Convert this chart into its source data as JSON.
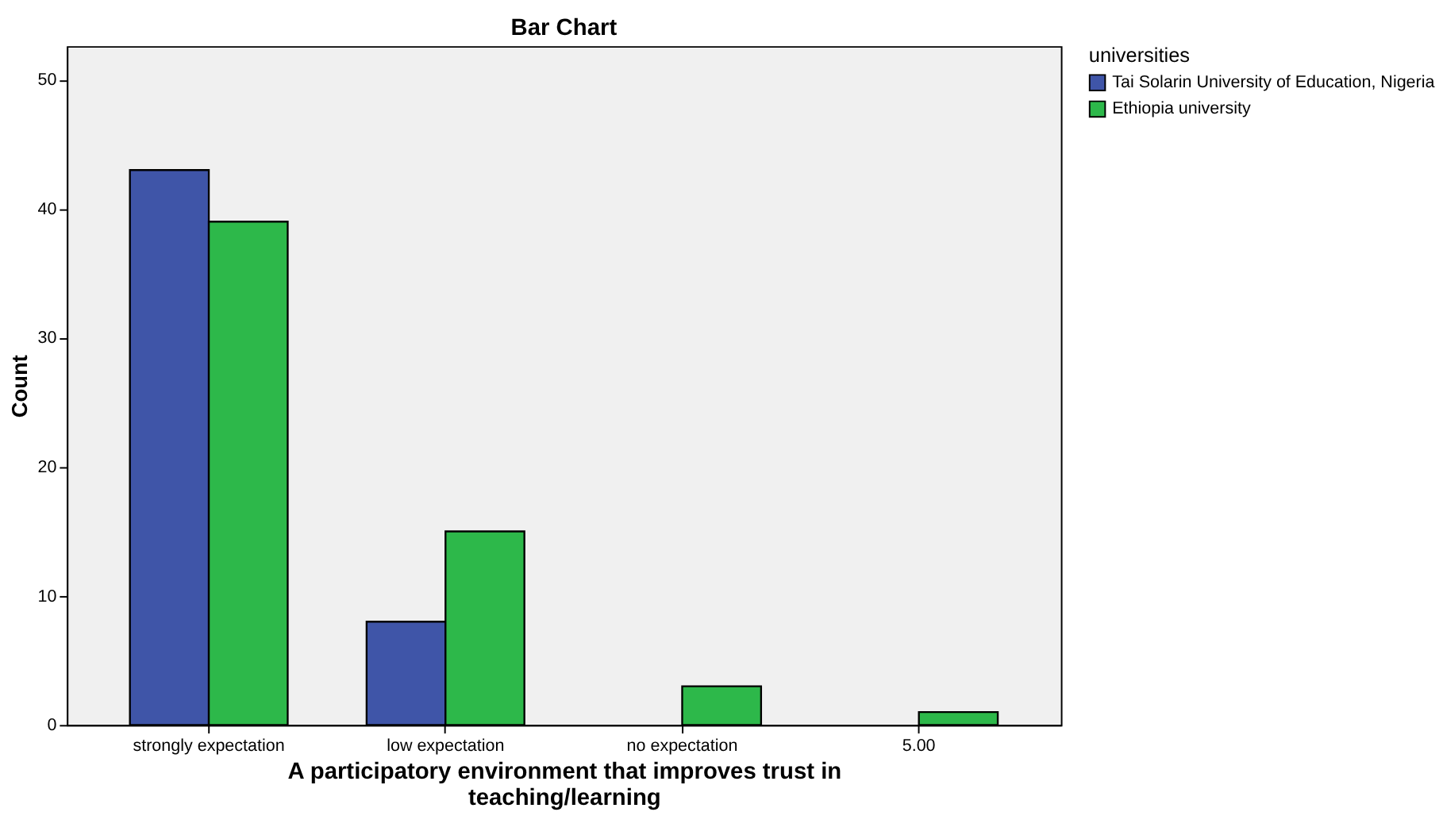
{
  "chart_data": {
    "type": "bar",
    "title": "Bar Chart",
    "xlabel": "A participatory environment that improves trust in teaching/learning",
    "ylabel": "Count",
    "legend_title": "universities",
    "categories": [
      "strongly expectation",
      "low expectation",
      "no expectation",
      "5.00"
    ],
    "series": [
      {
        "name": "Tai Solarin University of Education, Nigeria",
        "color": "#3f55a8",
        "values": [
          43,
          8,
          null,
          null
        ]
      },
      {
        "name": "Ethiopia university",
        "color": "#2db84a",
        "values": [
          39,
          15,
          3,
          1
        ]
      }
    ],
    "ylim": [
      0,
      52.6
    ],
    "yticks": [
      0,
      10,
      20,
      30,
      40,
      50
    ],
    "grid": false,
    "legend": "top right"
  }
}
